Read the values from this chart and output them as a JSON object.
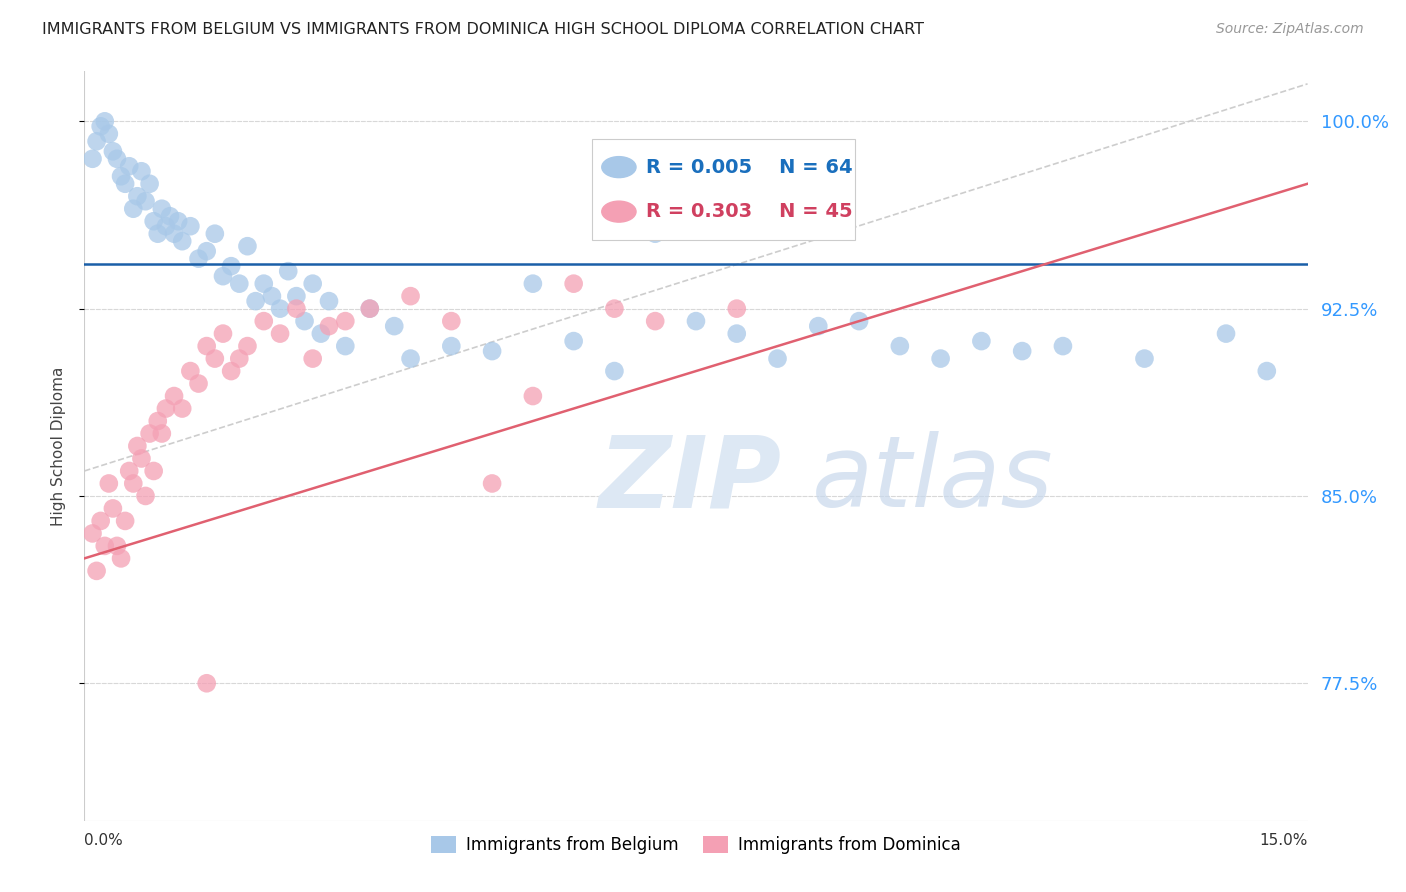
{
  "title": "IMMIGRANTS FROM BELGIUM VS IMMIGRANTS FROM DOMINICA HIGH SCHOOL DIPLOMA CORRELATION CHART",
  "source": "Source: ZipAtlas.com",
  "ylabel": "High School Diploma",
  "yticks": [
    100.0,
    92.5,
    85.0,
    77.5
  ],
  "ytick_labels": [
    "100.0%",
    "92.5%",
    "85.0%",
    "77.5%"
  ],
  "xmin": 0.0,
  "xmax": 15.0,
  "ymin": 72.0,
  "ymax": 102.0,
  "y_display_min": 77.5,
  "y_display_max": 100.0,
  "belgium_R": "0.005",
  "belgium_N": "64",
  "dominica_R": "0.303",
  "dominica_N": "45",
  "belgium_color": "#a8c8e8",
  "dominica_color": "#f4a0b4",
  "belgium_line_color": "#1a5fa8",
  "dominica_line_color": "#e06070",
  "diagonal_color": "#c8c8c8",
  "legend_color_belgium": "#1a6fbd",
  "legend_color_dominica": "#d04060",
  "axis_color": "#cccccc",
  "grid_color": "#d8d8d8",
  "tick_color": "#3399ff",
  "background_color": "#ffffff",
  "belgium_line_y": 94.3,
  "dominica_line_x0": 0.0,
  "dominica_line_y0": 82.5,
  "dominica_line_x1": 15.0,
  "dominica_line_y1": 97.5,
  "diag_x0": 0.0,
  "diag_y0": 86.0,
  "diag_x1": 15.0,
  "diag_y1": 101.5,
  "bel_pts_x": [
    0.1,
    0.15,
    0.2,
    0.25,
    0.3,
    0.35,
    0.4,
    0.45,
    0.5,
    0.55,
    0.6,
    0.65,
    0.7,
    0.75,
    0.8,
    0.85,
    0.9,
    0.95,
    1.0,
    1.05,
    1.1,
    1.15,
    1.2,
    1.3,
    1.4,
    1.5,
    1.6,
    1.7,
    1.8,
    1.9,
    2.0,
    2.1,
    2.2,
    2.3,
    2.4,
    2.5,
    2.6,
    2.7,
    2.8,
    2.9,
    3.0,
    3.2,
    3.5,
    3.8,
    4.0,
    4.5,
    5.0,
    5.5,
    6.0,
    6.5,
    7.0,
    7.5,
    8.0,
    8.5,
    9.0,
    9.5,
    10.0,
    10.5,
    11.0,
    11.5,
    12.0,
    13.0,
    14.0,
    14.5
  ],
  "bel_pts_y": [
    98.5,
    99.2,
    99.8,
    100.0,
    99.5,
    98.8,
    98.5,
    97.8,
    97.5,
    98.2,
    96.5,
    97.0,
    98.0,
    96.8,
    97.5,
    96.0,
    95.5,
    96.5,
    95.8,
    96.2,
    95.5,
    96.0,
    95.2,
    95.8,
    94.5,
    94.8,
    95.5,
    93.8,
    94.2,
    93.5,
    95.0,
    92.8,
    93.5,
    93.0,
    92.5,
    94.0,
    93.0,
    92.0,
    93.5,
    91.5,
    92.8,
    91.0,
    92.5,
    91.8,
    90.5,
    91.0,
    90.8,
    93.5,
    91.2,
    90.0,
    95.5,
    92.0,
    91.5,
    90.5,
    91.8,
    92.0,
    91.0,
    90.5,
    91.2,
    90.8,
    91.0,
    90.5,
    91.5,
    90.0
  ],
  "dom_pts_x": [
    0.1,
    0.15,
    0.2,
    0.25,
    0.3,
    0.35,
    0.4,
    0.45,
    0.5,
    0.55,
    0.6,
    0.65,
    0.7,
    0.75,
    0.8,
    0.85,
    0.9,
    0.95,
    1.0,
    1.1,
    1.2,
    1.3,
    1.4,
    1.5,
    1.6,
    1.7,
    1.8,
    1.9,
    2.0,
    2.2,
    2.4,
    2.6,
    2.8,
    3.0,
    3.2,
    3.5,
    4.0,
    4.5,
    5.0,
    5.5,
    6.0,
    6.5,
    7.0,
    8.0,
    1.5
  ],
  "dom_pts_y": [
    83.5,
    82.0,
    84.0,
    83.0,
    85.5,
    84.5,
    83.0,
    82.5,
    84.0,
    86.0,
    85.5,
    87.0,
    86.5,
    85.0,
    87.5,
    86.0,
    88.0,
    87.5,
    88.5,
    89.0,
    88.5,
    90.0,
    89.5,
    91.0,
    90.5,
    91.5,
    90.0,
    90.5,
    91.0,
    92.0,
    91.5,
    92.5,
    90.5,
    91.8,
    92.0,
    92.5,
    93.0,
    92.0,
    85.5,
    89.0,
    93.5,
    92.5,
    92.0,
    92.5,
    77.5
  ]
}
